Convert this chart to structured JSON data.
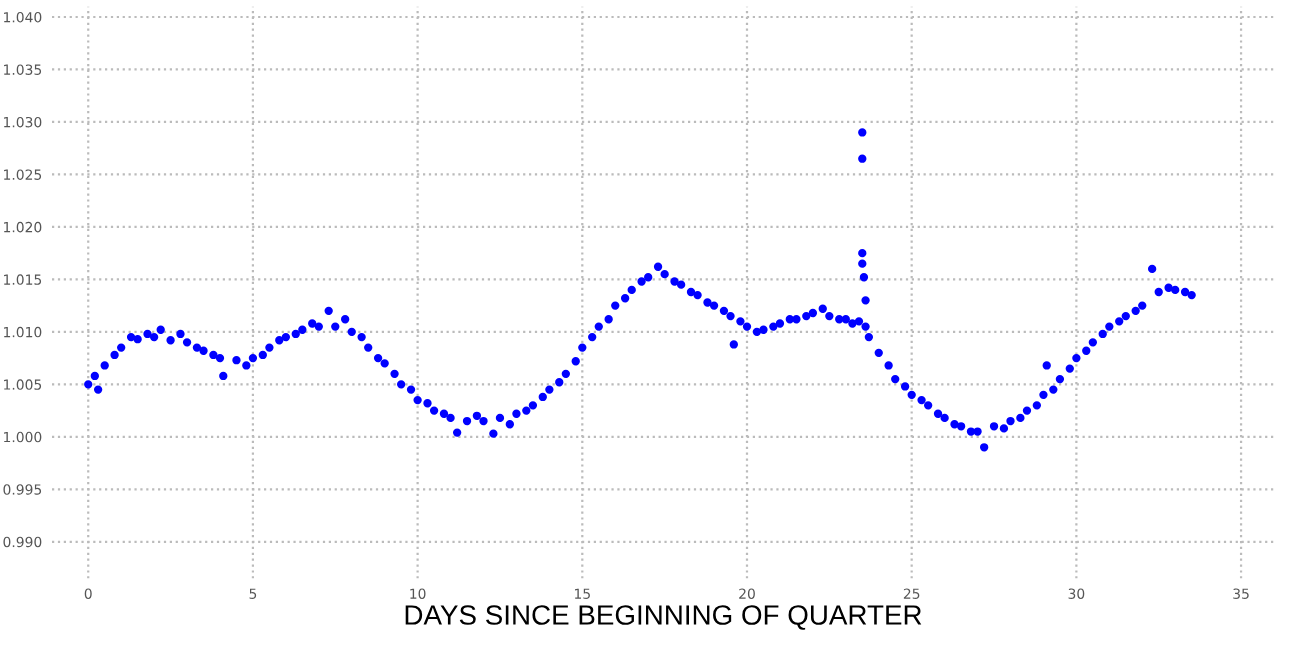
{
  "chart_data": {
    "type": "scatter",
    "xlabel": "DAYS SINCE BEGINNING OF QUARTER",
    "marker": "circle",
    "grid": true,
    "series": [
      {
        "color": "#0000ff",
        "x": [
          0,
          0.2,
          0.3,
          0.5,
          0.8,
          1,
          1.3,
          1.5,
          1.8,
          2,
          2.2,
          2.5,
          2.8,
          3,
          3.3,
          3.5,
          3.8,
          4,
          4.1,
          4.5,
          4.8,
          5,
          5.3,
          5.5,
          5.8,
          6,
          6.3,
          6.5,
          6.8,
          7,
          7.3,
          7.5,
          7.8,
          8,
          8.3,
          8.5,
          8.8,
          9,
          9.3,
          9.5,
          9.8,
          10,
          10.3,
          10.5,
          10.8,
          11,
          11.2,
          11.5,
          11.8,
          12,
          12.3,
          12.5,
          12.8,
          13,
          13.3,
          13.5,
          13.8,
          14,
          14.3,
          14.5,
          14.8,
          15,
          15.3,
          15.5,
          15.8,
          16,
          16.3,
          16.5,
          16.8,
          17,
          17.3,
          17.5,
          17.8,
          18,
          18.3,
          18.5,
          18.8,
          19,
          19.3,
          19.5,
          19.6,
          19.8,
          20,
          20.3,
          20.5,
          20.8,
          21,
          21.3,
          21.5,
          21.8,
          22,
          22.3,
          22.5,
          22.8,
          23,
          23.2,
          23.4,
          23.5,
          23.5,
          23.5,
          23.5,
          23.55,
          23.6,
          23.6,
          23.7,
          24,
          24.3,
          24.5,
          24.8,
          25,
          25.3,
          25.5,
          25.8,
          26,
          26.3,
          26.5,
          26.8,
          27,
          27.2,
          27.5,
          27.8,
          28,
          28.3,
          28.5,
          28.8,
          29,
          29.1,
          29.3,
          29.5,
          29.8,
          30,
          30.3,
          30.5,
          30.8,
          31,
          31.3,
          31.5,
          31.8,
          32,
          32.3,
          32.5,
          32.8,
          33,
          33.3,
          33.5
        ],
        "values": [
          1.005,
          1.0058,
          1.0045,
          1.0068,
          1.0078,
          1.0085,
          1.0095,
          1.0093,
          1.0098,
          1.0095,
          1.0102,
          1.0092,
          1.0098,
          1.009,
          1.0085,
          1.0082,
          1.0078,
          1.0075,
          1.0058,
          1.0073,
          1.0068,
          1.0075,
          1.0078,
          1.0085,
          1.0092,
          1.0095,
          1.0098,
          1.0102,
          1.0108,
          1.0105,
          1.012,
          1.0105,
          1.0112,
          1.01,
          1.0095,
          1.0085,
          1.0075,
          1.007,
          1.006,
          1.005,
          1.0045,
          1.0035,
          1.0032,
          1.0025,
          1.0022,
          1.0018,
          1.0004,
          1.0015,
          1.002,
          1.0015,
          1.0003,
          1.0018,
          1.0012,
          1.0022,
          1.0025,
          1.003,
          1.0038,
          1.0045,
          1.0052,
          1.006,
          1.0072,
          1.0085,
          1.0095,
          1.0105,
          1.0112,
          1.0125,
          1.0132,
          1.014,
          1.0148,
          1.0152,
          1.0162,
          1.0155,
          1.0148,
          1.0145,
          1.0138,
          1.0135,
          1.0128,
          1.0125,
          1.012,
          1.0115,
          1.0088,
          1.011,
          1.0105,
          1.01,
          1.0102,
          1.0105,
          1.0108,
          1.0112,
          1.0112,
          1.0115,
          1.0118,
          1.0122,
          1.0115,
          1.0112,
          1.0112,
          1.0108,
          1.011,
          1.029,
          1.0265,
          1.0175,
          1.0165,
          1.0152,
          1.013,
          1.0105,
          1.0095,
          1.008,
          1.0068,
          1.0055,
          1.0048,
          1.004,
          1.0035,
          1.003,
          1.0022,
          1.0018,
          1.0012,
          1.001,
          1.0005,
          1.0005,
          0.999,
          1.001,
          1.0008,
          1.0015,
          1.0018,
          1.0025,
          1.003,
          1.004,
          1.0068,
          1.0045,
          1.0055,
          1.0065,
          1.0075,
          1.0082,
          1.009,
          1.0098,
          1.0105,
          1.011,
          1.0115,
          1.012,
          1.0125,
          1.016,
          1.0138,
          1.0142,
          1.014,
          1.0138,
          1.0135
        ]
      }
    ],
    "xlim": [
      -1.1,
      36
    ],
    "ylim": [
      0.9865,
      1.041
    ],
    "xticks": [
      0,
      5,
      10,
      15,
      20,
      25,
      30,
      35
    ],
    "yticks": [
      {
        "value": 0.99,
        "label": "0.990"
      },
      {
        "value": 0.995,
        "label": "0.995"
      },
      {
        "value": 1.0,
        "label": "1.000"
      },
      {
        "value": 1.005,
        "label": "1.005"
      },
      {
        "value": 1.01,
        "label": "1.010"
      },
      {
        "value": 1.015,
        "label": "1.015"
      },
      {
        "value": 1.02,
        "label": "1.020"
      },
      {
        "value": 1.025,
        "label": "1.025"
      },
      {
        "value": 1.03,
        "label": "1.030"
      },
      {
        "value": 1.035,
        "label": "1.035"
      },
      {
        "value": 1.04,
        "label": "1.040"
      }
    ]
  }
}
